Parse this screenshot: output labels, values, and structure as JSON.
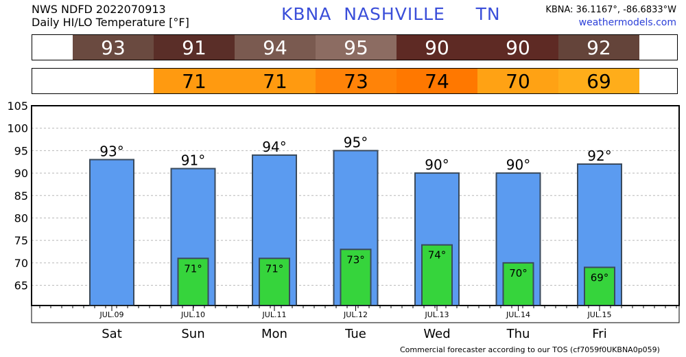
{
  "header": {
    "line1": "NWS NDFD 2022070913",
    "line2": "Daily HI/LO Temperature [°F]",
    "station": "KBNA  NASHVILLE     TN",
    "coords": "KBNA: 36.1167°, -86.6833°W",
    "site": "weathermodels.com"
  },
  "hi_strip": [
    {
      "value": "93",
      "color": "#6a4a40"
    },
    {
      "value": "91",
      "color": "#5a2e28"
    },
    {
      "value": "94",
      "color": "#7a5a50"
    },
    {
      "value": "95",
      "color": "#8c6c62"
    },
    {
      "value": "90",
      "color": "#5e2a24"
    },
    {
      "value": "90",
      "color": "#5e2a24"
    },
    {
      "value": "92",
      "color": "#64443a"
    }
  ],
  "lo_strip": [
    {
      "value": "",
      "color": "#ffffff"
    },
    {
      "value": "71",
      "color": "#ff9a10"
    },
    {
      "value": "71",
      "color": "#ff9a10"
    },
    {
      "value": "73",
      "color": "#ff8308"
    },
    {
      "value": "74",
      "color": "#ff7800"
    },
    {
      "value": "70",
      "color": "#ffa214"
    },
    {
      "value": "69",
      "color": "#ffad1a"
    }
  ],
  "chart_data": {
    "type": "bar",
    "categories": [
      "Sat",
      "Sun",
      "Mon",
      "Tue",
      "Wed",
      "Thu",
      "Fri"
    ],
    "dates": [
      "JUL.09",
      "JUL.10",
      "JUL.11",
      "JUL.12",
      "JUL.13",
      "JUL.14",
      "JUL.15"
    ],
    "series": [
      {
        "values": [
          93,
          91,
          94,
          95,
          90,
          90,
          92
        ],
        "color": "#5b9bf0"
      },
      {
        "values": [
          null,
          71,
          71,
          73,
          74,
          70,
          69
        ],
        "color": "#36d43c"
      }
    ],
    "yticks": [
      65,
      70,
      75,
      80,
      85,
      90,
      95,
      100,
      105
    ],
    "ylim": [
      60.5,
      105
    ],
    "grid": "horizontal dashed",
    "xlabel": "",
    "ylabel": "",
    "title": ""
  },
  "footer": "Commercial forecaster according to our TOS (cf7059f0UKBNA0p059)"
}
